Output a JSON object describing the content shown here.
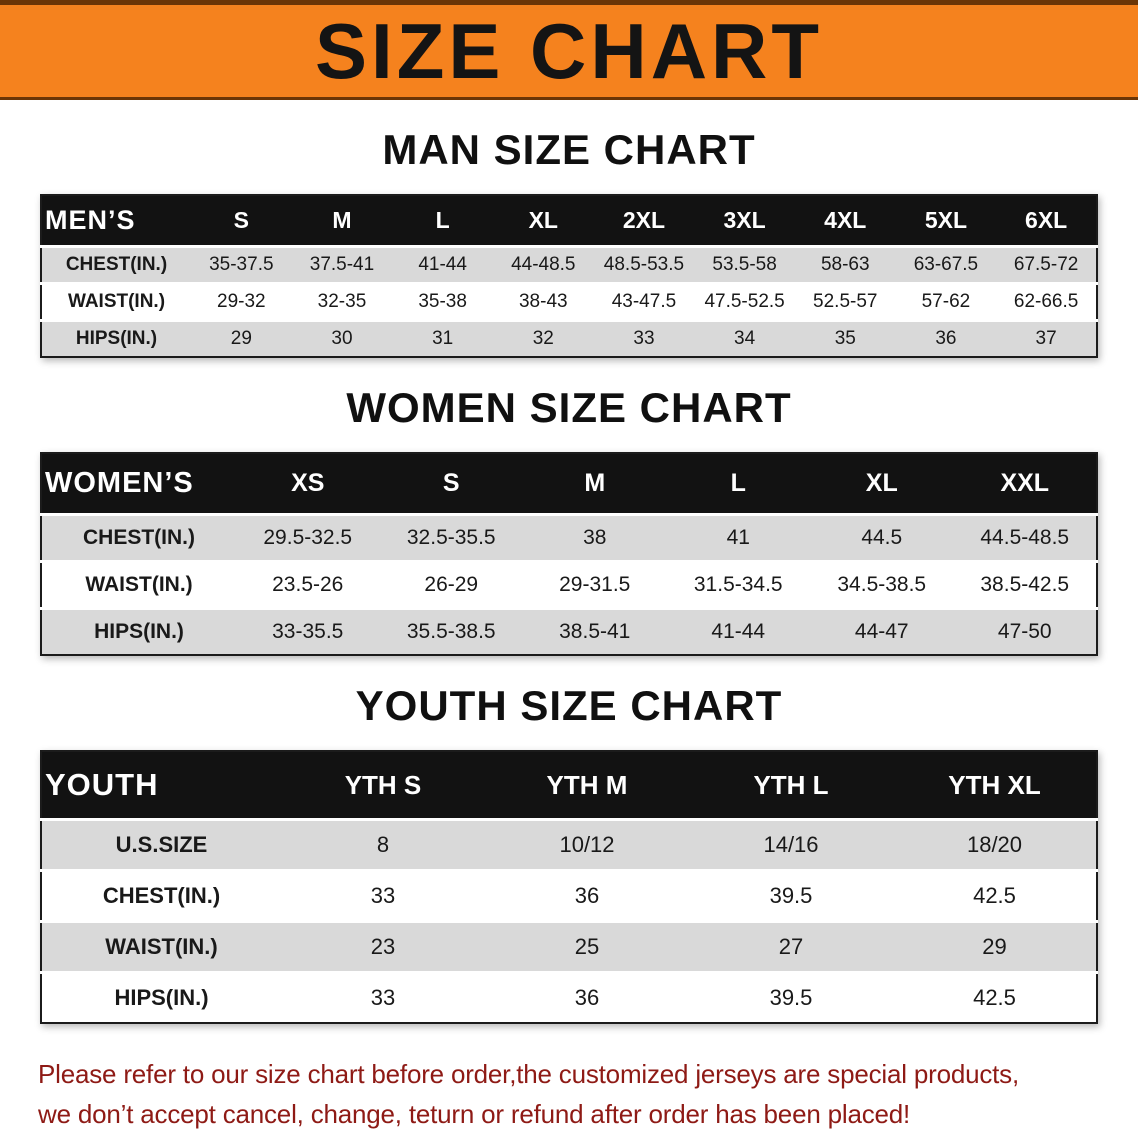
{
  "banner": {
    "title": "SIZE CHART",
    "bg_color": "#F5821E",
    "border_color": "#6B3506",
    "text_color": "#141414"
  },
  "colors": {
    "table_header_bg": "#121212",
    "table_header_text": "#FFFFFF",
    "row_stripe": "#D9D9D9",
    "footer_text": "#8E1A15"
  },
  "chart_data": [
    {
      "type": "table",
      "title": "MAN SIZE CHART",
      "columns": [
        "MEN’S",
        "S",
        "M",
        "L",
        "XL",
        "2XL",
        "3XL",
        "4XL",
        "5XL",
        "6XL"
      ],
      "rows": [
        [
          "CHEST(IN.)",
          "35-37.5",
          "37.5-41",
          "41-44",
          "44-48.5",
          "48.5-53.5",
          "53.5-58",
          "58-63",
          "63-67.5",
          "67.5-72"
        ],
        [
          "WAIST(IN.)",
          "29-32",
          "32-35",
          "35-38",
          "38-43",
          "43-47.5",
          "47.5-52.5",
          "52.5-57",
          "57-62",
          "62-66.5"
        ],
        [
          "HIPS(IN.)",
          "29",
          "30",
          "31",
          "32",
          "33",
          "34",
          "35",
          "36",
          "37"
        ]
      ]
    },
    {
      "type": "table",
      "title": "WOMEN SIZE CHART",
      "columns": [
        "WOMEN’S",
        "XS",
        "S",
        "M",
        "L",
        "XL",
        "XXL"
      ],
      "rows": [
        [
          "CHEST(IN.)",
          "29.5-32.5",
          "32.5-35.5",
          "38",
          "41",
          "44.5",
          "44.5-48.5"
        ],
        [
          "WAIST(IN.)",
          "23.5-26",
          "26-29",
          "29-31.5",
          "31.5-34.5",
          "34.5-38.5",
          "38.5-42.5"
        ],
        [
          "HIPS(IN.)",
          "33-35.5",
          "35.5-38.5",
          "38.5-41",
          "41-44",
          "44-47",
          "47-50"
        ]
      ]
    },
    {
      "type": "table",
      "title": "YOUTH SIZE CHART",
      "columns": [
        "YOUTH",
        "YTH S",
        "YTH M",
        "YTH L",
        "YTH XL"
      ],
      "rows": [
        [
          "U.S.SIZE",
          "8",
          "10/12",
          "14/16",
          "18/20"
        ],
        [
          "CHEST(IN.)",
          "33",
          "36",
          "39.5",
          "42.5"
        ],
        [
          "WAIST(IN.)",
          "23",
          "25",
          "27",
          "29"
        ],
        [
          "HIPS(IN.)",
          "33",
          "36",
          "39.5",
          "42.5"
        ]
      ]
    }
  ],
  "footer": {
    "line1": "Please refer to our size chart before order,the customized jerseys are special products,",
    "line2": "we don’t accept cancel, change, teturn or refund after order has been placed!"
  }
}
